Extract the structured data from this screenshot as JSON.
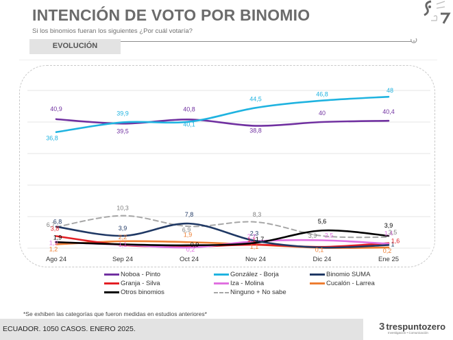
{
  "header": {
    "title": "INTENCIÓN DE VOTO POR BINOMIO",
    "subtitle": "Si los binomios fueran los siguientes ¿Por cuál votaría?",
    "tab_label": "EVOLUCIÓN"
  },
  "footer": {
    "note": "*Se exhiben las categorías que fueron medidas en estudios anteriores*",
    "source": "ECUADOR. 1050 CASOS. ENERO 2025.",
    "brand_name": "trespuntozero",
    "brand_mark": "3",
    "brand_tagline": "Investigación • Comunicación"
  },
  "chart_data": {
    "type": "line",
    "title": "INTENCIÓN DE VOTO POR BINOMIO",
    "subtitle": "Si los binomios fueran los siguientes ¿Por cuál votaría?",
    "xlabel": "",
    "ylabel": "",
    "x": [
      "Ago 24",
      "Sep 24",
      "Oct 24",
      "Nov 24",
      "Dic 24",
      "Ene 25"
    ],
    "ylim": [
      0,
      50
    ],
    "grid": true,
    "legend_position": "bottom",
    "series": [
      {
        "name": "Noboa - Pinto",
        "color": "#7030a0",
        "dashed": false,
        "values": [
          40.9,
          39.5,
          40.8,
          38.8,
          40,
          40.4
        ],
        "labels": [
          "40,9",
          "39,5",
          "40,8",
          "38,8",
          "40",
          "40,4"
        ]
      },
      {
        "name": "González - Borja",
        "color": "#1fb3e0",
        "dashed": false,
        "values": [
          36.8,
          39.9,
          40.1,
          44.5,
          46.8,
          48
        ],
        "labels": [
          "36,8",
          "39,9",
          "40,1",
          "44,5",
          "46,8",
          "48"
        ]
      },
      {
        "name": "Binomio SUMA",
        "color": "#1f3864",
        "dashed": false,
        "values": [
          6.8,
          3.9,
          7.8,
          2.3,
          0.2,
          1
        ],
        "labels": [
          "6,8",
          "3,9",
          "7,8",
          "2,3",
          "",
          "1"
        ]
      },
      {
        "name": "Granja - Silva",
        "color": "#e31e24",
        "dashed": false,
        "values": [
          3.8,
          1.0,
          0.5,
          1.1,
          0.4,
          1.6
        ],
        "labels": [
          "3,8",
          "",
          "",
          "1,1",
          "",
          "1,6"
        ]
      },
      {
        "name": "Iza - Molina",
        "color": "#e070e0",
        "dashed": false,
        "values": [
          1.9,
          1.1,
          0.2,
          2.2,
          2.5,
          1.4
        ],
        "labels": [
          "1,9",
          "1,1",
          "0,2",
          "2,2",
          "2,5",
          "1,4"
        ]
      },
      {
        "name": "Cucalón - Larrea",
        "color": "#ed7d31",
        "dashed": false,
        "values": [
          1.2,
          2.2,
          1.9,
          1.1,
          0.1,
          0.2
        ],
        "labels": [
          "1,2",
          "2,2",
          "1,9",
          "1,1",
          "0,1",
          "0,2"
        ]
      },
      {
        "name": "Otros binomios",
        "color": "#000000",
        "dashed": false,
        "values": [
          1.9,
          1.2,
          0.9,
          1.7,
          5.6,
          3.9
        ],
        "labels": [
          "1,9",
          "",
          "0,9",
          "1,7",
          "5,6",
          "3,9"
        ]
      },
      {
        "name": "Ninguno + No sabe",
        "color": "#a6a6a6",
        "dashed": true,
        "values": [
          6.7,
          10.3,
          6.9,
          8.3,
          3.9,
          3.5
        ],
        "labels": [
          "6,7",
          "10,3",
          "6,9",
          "8,3",
          "3,9",
          "3,5"
        ]
      }
    ]
  }
}
